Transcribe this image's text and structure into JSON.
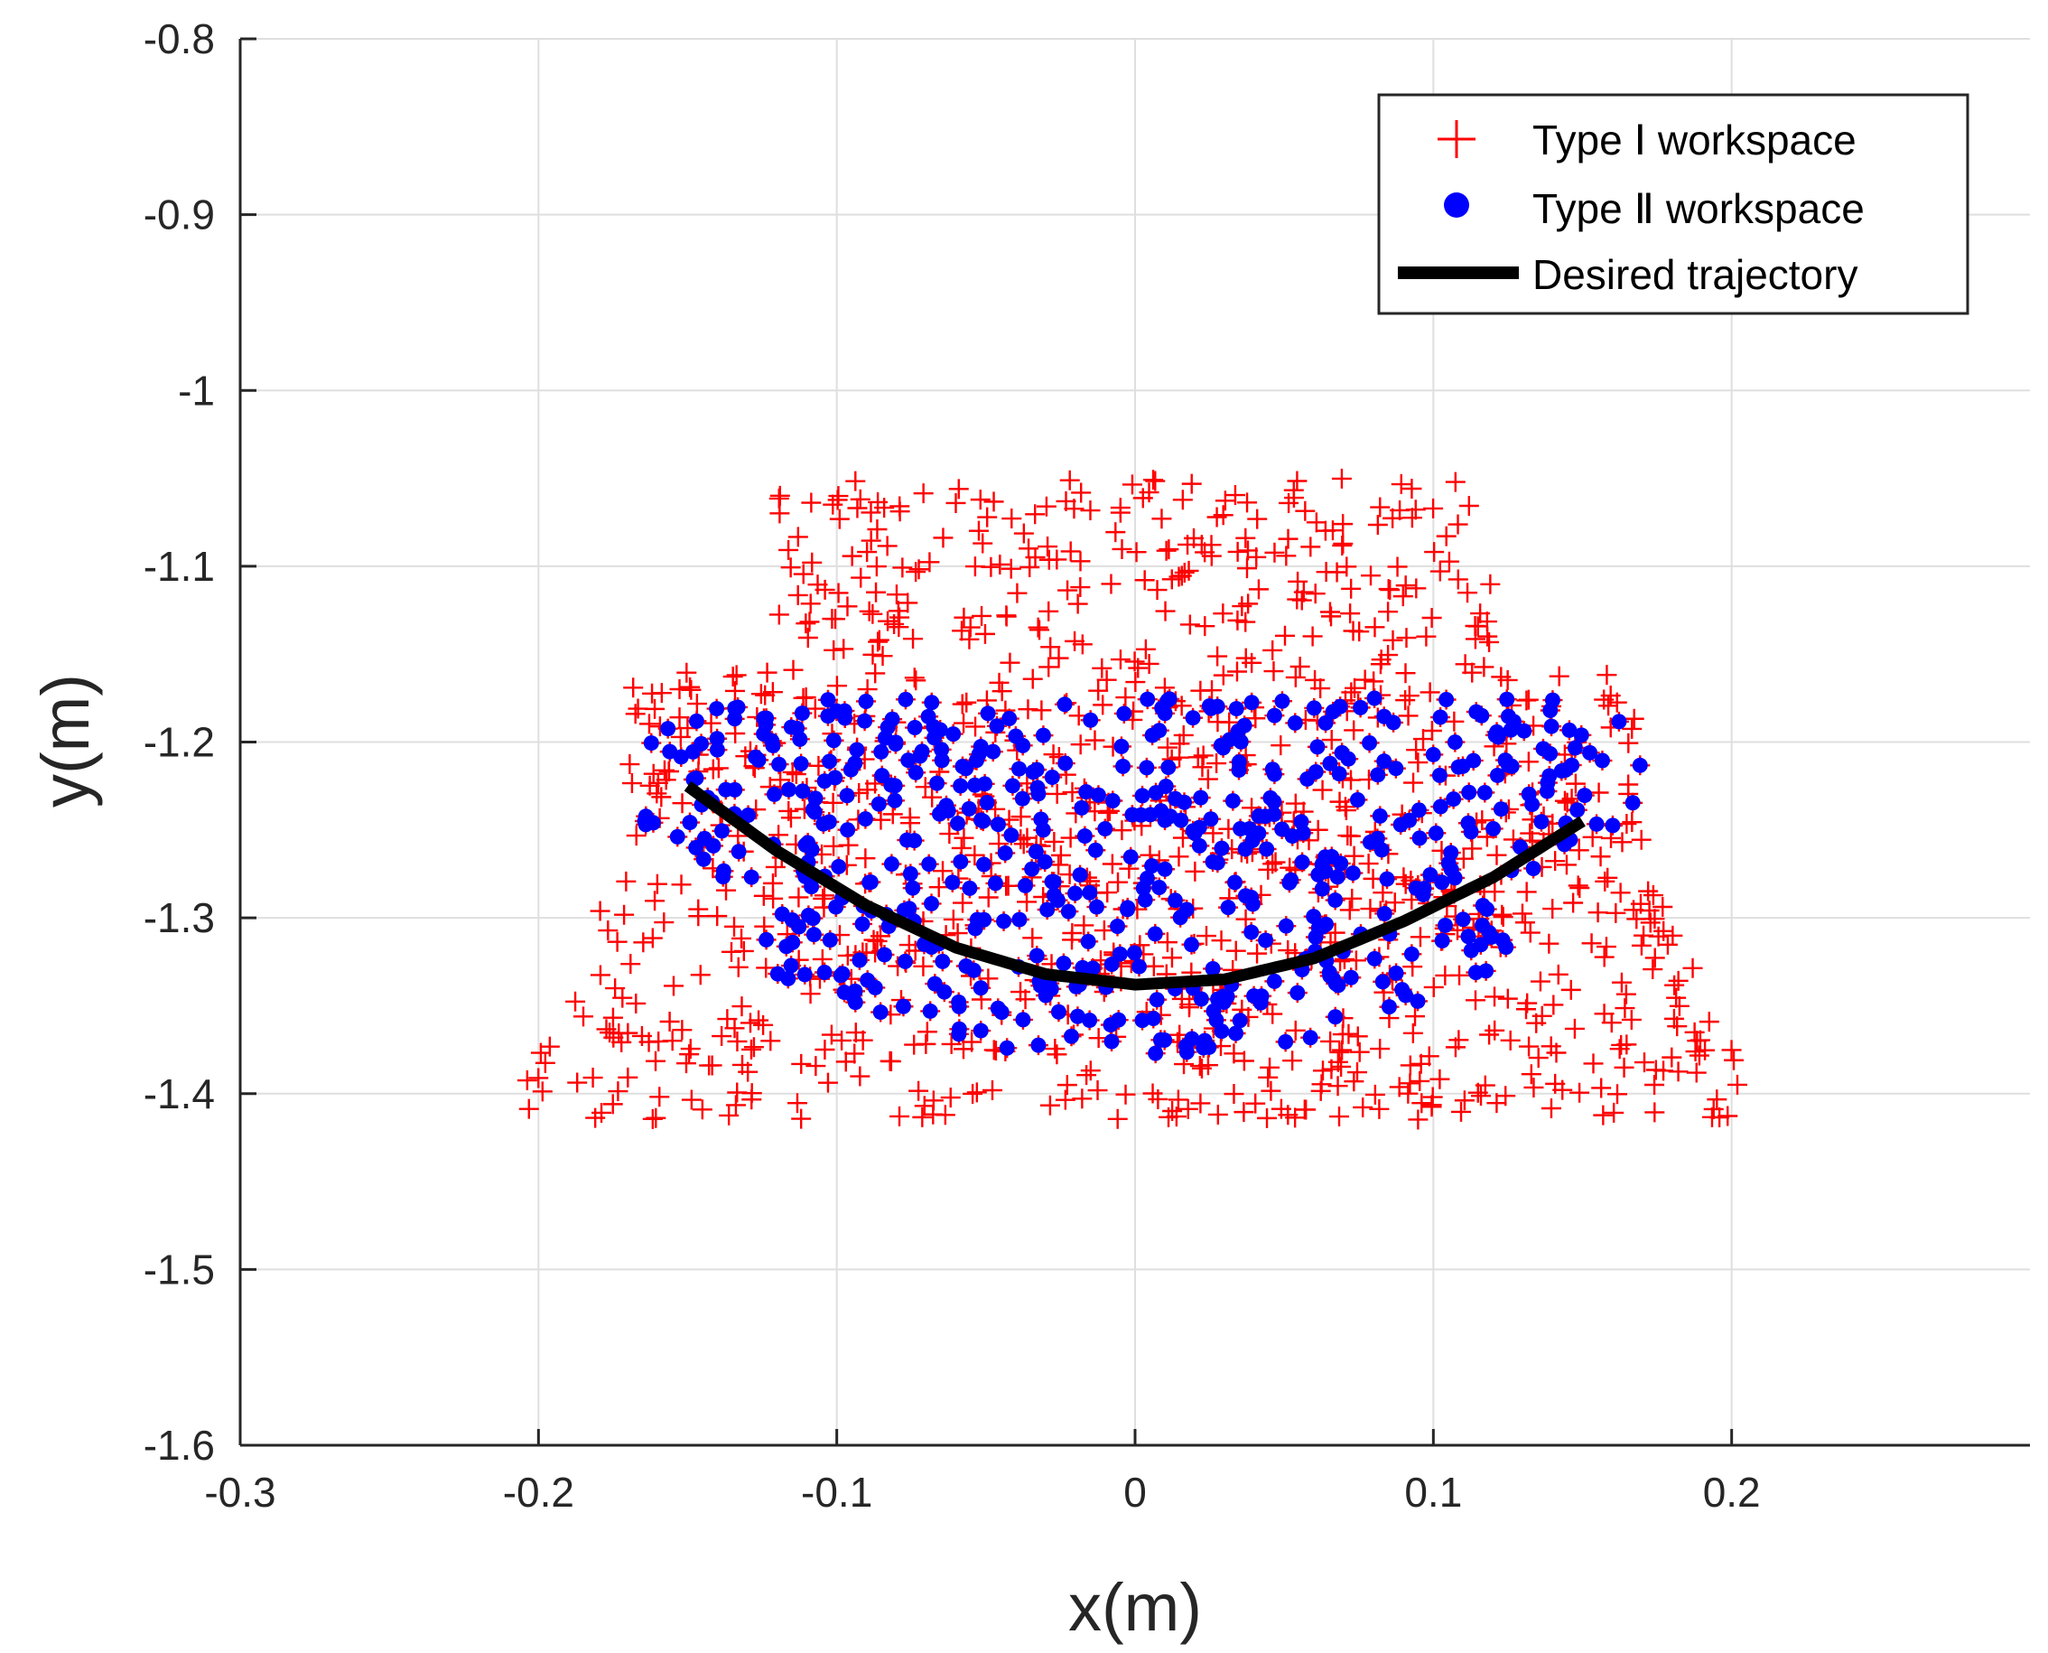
{
  "chart_data": {
    "type": "scatter",
    "title": "",
    "xlabel": "x(m)",
    "ylabel": "y(m)",
    "xlim": [
      -0.3,
      0.3
    ],
    "ylim": [
      -1.6,
      -0.8
    ],
    "grid": true,
    "x_ticks": [
      -0.3,
      -0.2,
      -0.1,
      0,
      0.1,
      0.2
    ],
    "x_tick_labels": [
      "-0.3",
      "-0.2",
      "-0.1",
      "0",
      "0.1",
      "0.2"
    ],
    "y_ticks": [
      -0.8,
      -0.9,
      -1.0,
      -1.1,
      -1.2,
      -1.3,
      -1.4,
      -1.5,
      -1.6
    ],
    "y_tick_labels": [
      "-0.8",
      "-0.9",
      "-1",
      "-1.1",
      "-1.2",
      "-1.3",
      "-1.4",
      "-1.5",
      "-1.6"
    ],
    "legend_position": "top-right",
    "series": [
      {
        "name": "Type Ⅰ workspace",
        "marker": "plus",
        "color": "#ff0000",
        "region": {
          "description_values": "approximate scattered samples",
          "x_range": [
            -0.205,
            0.205
          ],
          "y_range": [
            -1.415,
            -1.05
          ],
          "count": 1100
        }
      },
      {
        "name": "Type Ⅱ workspace",
        "marker": "filled-circle",
        "color": "#0000ff",
        "region": {
          "x_range": [
            -0.165,
            0.17
          ],
          "y_range": [
            -1.38,
            -1.175
          ],
          "count": 560
        }
      },
      {
        "name": "Desired trajectory",
        "marker": "line",
        "color": "#000000",
        "x": [
          -0.15,
          -0.12,
          -0.09,
          -0.06,
          -0.03,
          0,
          0.03,
          0.06,
          0.09,
          0.12,
          0.15
        ],
        "y": [
          -1.225,
          -1.262,
          -1.293,
          -1.317,
          -1.332,
          -1.338,
          -1.335,
          -1.323,
          -1.302,
          -1.277,
          -1.245
        ]
      }
    ]
  }
}
